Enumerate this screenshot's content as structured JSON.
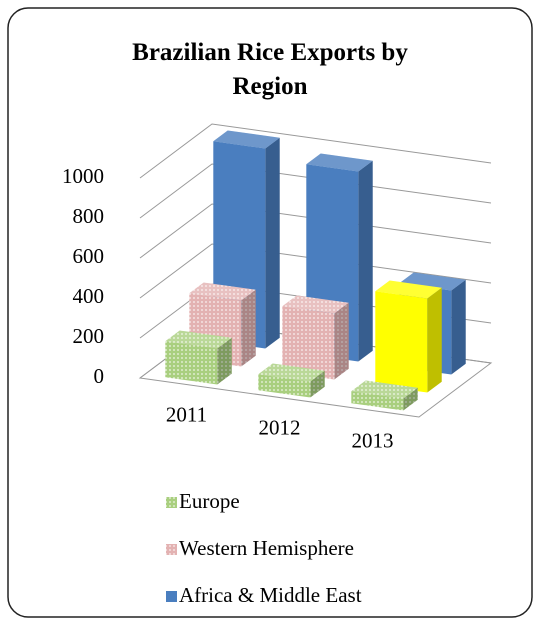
{
  "chart_data": {
    "type": "bar3d",
    "title": "Brazilian  Rice Exports by Region",
    "categories": [
      "2011",
      "2012",
      "2013"
    ],
    "series": [
      {
        "name": "Europe",
        "color": "#a9cf7f",
        "pattern": "dots",
        "values": [
          180,
          80,
          60
        ]
      },
      {
        "name": "Western Hemisphere",
        "color": "#e3b2b2",
        "pattern": "dots",
        "colors": [
          "#e3b2b2",
          "#e3b2b2",
          "#ffff00"
        ],
        "values": [
          330,
          330,
          470
        ]
      },
      {
        "name": "Africa & Middle East",
        "color": "#4a7ebf",
        "values": [
          1000,
          950,
          420
        ]
      }
    ],
    "ylim": [
      0,
      1000
    ],
    "yticks": [
      0,
      200,
      400,
      600,
      800,
      1000
    ],
    "grid": true,
    "legend": "bottom"
  }
}
